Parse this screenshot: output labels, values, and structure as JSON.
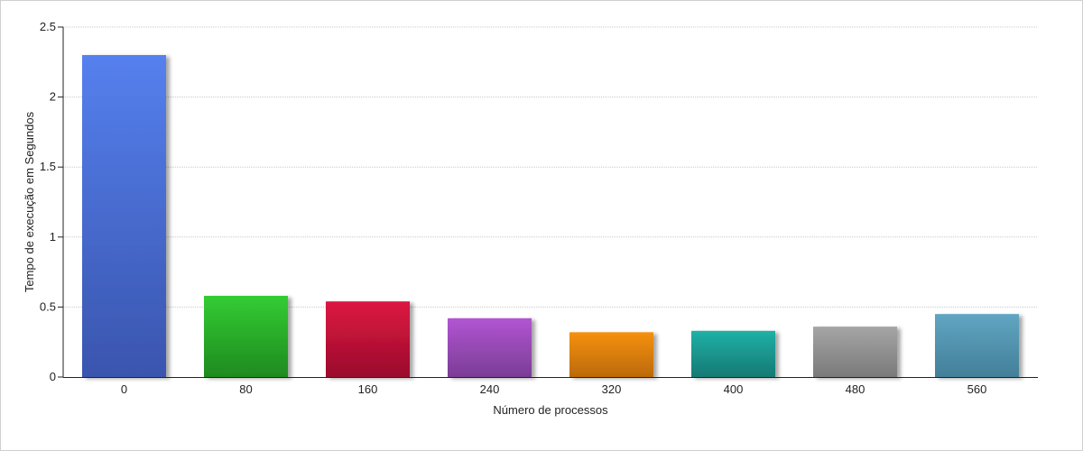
{
  "chart_data": {
    "type": "bar",
    "xlabel": "Número de processos",
    "ylabel": "Tempo de execução em Segundos",
    "ylim": [
      0,
      2.5
    ],
    "yticks": [
      "0",
      "0.5",
      "1",
      "1.5",
      "2",
      "2.5"
    ],
    "yticks_values": [
      0,
      0.5,
      1,
      1.5,
      2,
      2.5
    ],
    "categories": [
      "0",
      "80",
      "160",
      "240",
      "320",
      "400",
      "480",
      "560"
    ],
    "values": [
      2.3,
      0.58,
      0.54,
      0.42,
      0.32,
      0.33,
      0.36,
      0.45
    ],
    "colors": [
      [
        "#5580ee",
        "#3a55ae"
      ],
      [
        "#33cc33",
        "#1f8a1f"
      ],
      [
        "#dd1540",
        "#9a0e2c"
      ],
      [
        "#b155d2",
        "#7a3d95"
      ],
      [
        "#f5900d",
        "#bb6a06"
      ],
      [
        "#20b0a6",
        "#157a74"
      ],
      [
        "#a5a5a5",
        "#7a7a7a"
      ],
      [
        "#60a5c2",
        "#437f99"
      ]
    ],
    "grid": true,
    "legend": "none"
  }
}
